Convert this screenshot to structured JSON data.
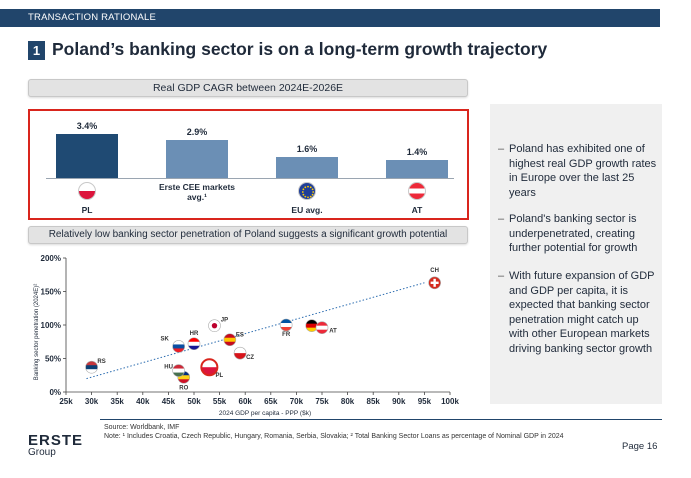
{
  "header": {
    "section_label": "TRANSACTION RATIONALE"
  },
  "title": {
    "number": "1",
    "text": "Poland’s banking sector is on a long-term growth trajectory"
  },
  "gdp_section": {
    "heading": "Real GDP CAGR between 2024E-2026E",
    "bars": [
      {
        "label": "PL",
        "value": 3.4,
        "value_label": "3.4%",
        "color": "#1f4a73",
        "flag": "pl-flag-icon"
      },
      {
        "label": "Erste CEE markets avg.¹",
        "value": 2.9,
        "value_label": "2.9%",
        "color": "#6b8fb5",
        "flag": ""
      },
      {
        "label": "EU avg.",
        "value": 1.6,
        "value_label": "1.6%",
        "color": "#6b8fb5",
        "flag": "eu-flag-icon"
      },
      {
        "label": "AT",
        "value": 1.4,
        "value_label": "1.4%",
        "color": "#6b8fb5",
        "flag": "at-flag-icon"
      }
    ]
  },
  "penetration_section": {
    "heading": "Relatively low banking sector penetration of Poland suggests a significant growth potential"
  },
  "chart_data": {
    "type": "scatter",
    "title": "",
    "xlabel": "2024 GDP per capita - PPP ($k)",
    "ylabel": "Banking sector penetration (2024E)²",
    "xlim": [
      25,
      100
    ],
    "ylim": [
      0,
      200
    ],
    "x_ticks": [
      25,
      30,
      35,
      40,
      45,
      50,
      55,
      60,
      65,
      70,
      75,
      80,
      85,
      90,
      95,
      100
    ],
    "x_tick_labels": [
      "25k",
      "30k",
      "35k",
      "40k",
      "45k",
      "50k",
      "55k",
      "60k",
      "65k",
      "70k",
      "75k",
      "80k",
      "85k",
      "90k",
      "95k",
      "100k"
    ],
    "y_ticks": [
      0,
      50,
      100,
      150,
      200
    ],
    "y_tick_labels": [
      "0%",
      "50%",
      "100%",
      "150%",
      "200%"
    ],
    "points": [
      {
        "label": "RS",
        "x": 30,
        "y": 37
      },
      {
        "label": "RO",
        "x": 48,
        "y": 22
      },
      {
        "label": "HU",
        "x": 47,
        "y": 32
      },
      {
        "label": "PL",
        "x": 53,
        "y": 37,
        "highlight": true
      },
      {
        "label": "SK",
        "x": 47,
        "y": 68
      },
      {
        "label": "HR",
        "x": 50,
        "y": 72
      },
      {
        "label": "JP",
        "x": 54,
        "y": 99
      },
      {
        "label": "ES",
        "x": 57,
        "y": 78
      },
      {
        "label": "CZ",
        "x": 59,
        "y": 58
      },
      {
        "label": "FR",
        "x": 68,
        "y": 100
      },
      {
        "label": "DE",
        "x": 73,
        "y": 99
      },
      {
        "label": "AT",
        "x": 75,
        "y": 96
      },
      {
        "label": "CH",
        "x": 97,
        "y": 163
      }
    ],
    "trendline": {
      "from": [
        29,
        20
      ],
      "to": [
        95,
        163
      ]
    }
  },
  "sidebar": {
    "bullets": [
      "Poland has exhibited one of highest real GDP growth rates in Europe over the last 25 years",
      "Poland's banking sector is underpenetrated, creating further potential for growth",
      "With future expansion of GDP and GDP per capita, it is expected that banking sector penetration might catch up with other European markets driving banking sector growth"
    ]
  },
  "footer": {
    "source": "Source: Worldbank, IMF",
    "note": "Note: ¹ Includes Croatia, Czech Republic, Hungary, Romania, Serbia, Slovakia; ² Total Banking Sector Loans as percentage of Nominal GDP in 2024",
    "logo_line1": "ERSTE",
    "logo_line2": "Group",
    "page": "Page  16"
  },
  "colors": {
    "navy": "#21456b",
    "red": "#d9251d",
    "bar_dark": "#1f4a73",
    "bar_light": "#6b8fb5"
  }
}
